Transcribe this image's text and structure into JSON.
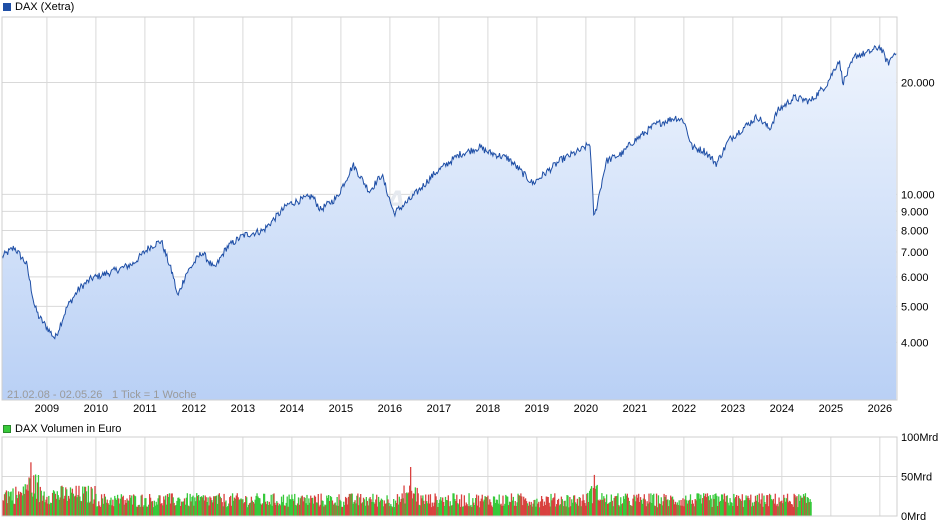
{
  "colors": {
    "line": "#1f4fa6",
    "fill_top": "#eef4fd",
    "fill_bottom": "#b9d0f5",
    "grid": "#d9d9d9",
    "vol_up": "#37c93a",
    "vol_down": "#d9413f",
    "watermark": "#e5e9ef"
  },
  "legend": {
    "price": "DAX (Xetra)",
    "volume": "DAX Volumen in Euro"
  },
  "meta": {
    "range": "21.02.08 - 02.05.26",
    "tick": "1 Tick = 1 Woche",
    "watermark": "ARIVA.DE"
  },
  "chart_data": [
    {
      "type": "area",
      "title": "DAX (Xetra)",
      "y_scale": "log",
      "ylim": [
        2800,
        30000
      ],
      "y_ticks": [
        {
          "v": 4000,
          "label": "4.000"
        },
        {
          "v": 5000,
          "label": "5.000"
        },
        {
          "v": 6000,
          "label": "6.000"
        },
        {
          "v": 7000,
          "label": "7.000"
        },
        {
          "v": 8000,
          "label": "8.000"
        },
        {
          "v": 9000,
          "label": "9.000"
        },
        {
          "v": 10000,
          "label": "10.000"
        },
        {
          "v": 20000,
          "label": "20.000"
        }
      ],
      "x_ticks": [
        "2009",
        "2010",
        "2011",
        "2012",
        "2013",
        "2014",
        "2015",
        "2016",
        "2017",
        "2018",
        "2019",
        "2020",
        "2021",
        "2022",
        "2023",
        "2024",
        "2025",
        "2026"
      ],
      "x": [
        "2008-02",
        "2008-05",
        "2008-08",
        "2008-10",
        "2008-11",
        "2009-03",
        "2009-06",
        "2009-09",
        "2009-12",
        "2010-05",
        "2010-10",
        "2011-02",
        "2011-05",
        "2011-08",
        "2011-09",
        "2011-11",
        "2012-03",
        "2012-06",
        "2012-09",
        "2013-01",
        "2013-06",
        "2013-12",
        "2014-06",
        "2014-08",
        "2014-12",
        "2015-04",
        "2015-08",
        "2015-11",
        "2016-02",
        "2016-06",
        "2016-12",
        "2017-06",
        "2017-11",
        "2018-01",
        "2018-06",
        "2018-12",
        "2019-07",
        "2019-12",
        "2020-02",
        "2020-03",
        "2020-06",
        "2020-10",
        "2020-12",
        "2021-06",
        "2021-11",
        "2022-01",
        "2022-03",
        "2022-06",
        "2022-09",
        "2022-12",
        "2023-07",
        "2023-10",
        "2023-12",
        "2024-04",
        "2024-08",
        "2024-12",
        "2025-03",
        "2025-04",
        "2025-07",
        "2025-10",
        "2026-01",
        "2026-03",
        "2026-05"
      ],
      "series": [
        {
          "values": [
            6800,
            7200,
            6500,
            5000,
            4700,
            4100,
            5000,
            5600,
            5950,
            6200,
            6500,
            7200,
            7500,
            6000,
            5300,
            6100,
            7000,
            6300,
            7200,
            7750,
            8000,
            9400,
            9900,
            9100,
            9800,
            12000,
            10200,
            11300,
            8900,
            9700,
            11400,
            12800,
            13400,
            13000,
            12500,
            10700,
            12400,
            13200,
            13700,
            8600,
            12300,
            12900,
            13700,
            15400,
            16100,
            15800,
            13400,
            13100,
            12100,
            14000,
            16200,
            15000,
            16800,
            18200,
            17800,
            19800,
            23000,
            20000,
            23600,
            24000,
            25000,
            22500,
            24400
          ]
        }
      ]
    },
    {
      "type": "bar",
      "title": "DAX Volumen in Euro",
      "ylim": [
        0,
        100
      ],
      "y_ticks": [
        {
          "v": 0,
          "label": "0Mrd"
        },
        {
          "v": 50,
          "label": "50Mrd"
        },
        {
          "v": 100,
          "label": "100Mrd"
        }
      ],
      "approx_typical_weekly": 20,
      "notable_peaks": [
        {
          "x": "2008-09",
          "value": 68
        },
        {
          "x": "2016-06",
          "value": 62
        },
        {
          "x": "2020-03",
          "value": 52
        }
      ]
    }
  ]
}
